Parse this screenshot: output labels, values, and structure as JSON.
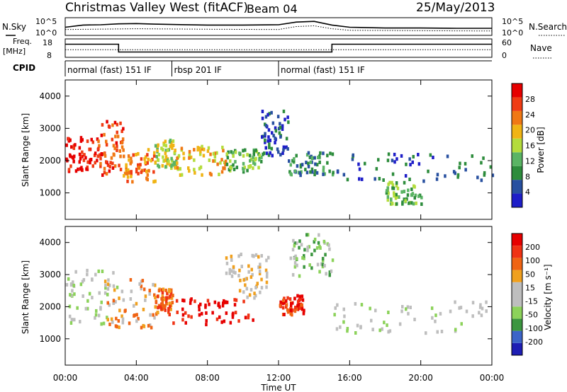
{
  "header": {
    "station": "Christmas Valley West (fitACF)",
    "beam": "Beam 04",
    "date": "25/May/2013"
  },
  "noise_panel": {
    "left_label": "N.Sky",
    "right_label": "N.Search",
    "left_ticks": [
      "10^5",
      "10^0"
    ],
    "right_ticks": [
      "10^5",
      "10^0"
    ]
  },
  "freq_panel": {
    "left_label_top": "Freq.",
    "left_label_bottom": "[MHz]",
    "right_label": "Nave",
    "left_ticks": [
      "18",
      "8"
    ],
    "right_ticks": [
      "60",
      "0"
    ]
  },
  "cpid": {
    "label": "CPID",
    "segments": [
      {
        "name": "normal (fast) 151 IF",
        "start_h": 0,
        "end_h": 6
      },
      {
        "name": "rbsp 201 IF",
        "start_h": 6,
        "end_h": 12
      },
      {
        "name": "normal (fast) 151 IF",
        "start_h": 12,
        "end_h": 24
      }
    ]
  },
  "x_axis": {
    "title": "Time UT",
    "ticks": [
      "00:00",
      "04:00",
      "08:00",
      "12:00",
      "16:00",
      "20:00",
      "00:00"
    ]
  },
  "colors": {
    "power_scale": [
      "#1e1ec8",
      "#2850a0",
      "#2d8c3c",
      "#5ab464",
      "#b4dc3c",
      "#f0b414",
      "#f07814",
      "#f03c14",
      "#e60000"
    ],
    "velocity_scale": [
      "#1e1eb4",
      "#3c64c8",
      "#3c9640",
      "#8cd25a",
      "#bebebe",
      "#bebebe",
      "#f0a01e",
      "#f06414",
      "#f03214",
      "#e60000"
    ]
  },
  "chart_data": [
    {
      "type": "line",
      "panel": "noise",
      "x_unit": "hours UT",
      "y_scale": "log",
      "y_range": [
        "10^0",
        "10^5"
      ],
      "series": [
        {
          "name": "N.Sky",
          "x": [
            0,
            1,
            2,
            3,
            4,
            5,
            6,
            8,
            10,
            12,
            13,
            14,
            15,
            16,
            18,
            20,
            22,
            24
          ],
          "y_frac": [
            0.45,
            0.6,
            0.62,
            0.68,
            0.7,
            0.66,
            0.64,
            0.6,
            0.6,
            0.62,
            0.8,
            0.85,
            0.6,
            0.45,
            0.4,
            0.4,
            0.38,
            0.38
          ]
        },
        {
          "name": "N.Search",
          "x": [
            0,
            4,
            8,
            12,
            13,
            14,
            15,
            16,
            20,
            24
          ],
          "y_frac": [
            0.3,
            0.35,
            0.32,
            0.3,
            0.5,
            0.55,
            0.35,
            0.25,
            0.22,
            0.2
          ]
        }
      ]
    },
    {
      "type": "line",
      "panel": "frequency",
      "x_unit": "hours UT",
      "y_range": [
        8,
        18
      ],
      "series": [
        {
          "name": "Freq.",
          "x": [
            0,
            3.0,
            3.0,
            15.0,
            15.0,
            24
          ],
          "y": [
            15.5,
            15.5,
            10.5,
            10.5,
            15.5,
            15.5
          ]
        },
        {
          "name": "Nave",
          "x": [
            0,
            24
          ],
          "y": [
            12,
            12
          ]
        }
      ]
    },
    {
      "type": "heatmap",
      "panel": "power",
      "y_label": "Slant Range [km]",
      "yticks": [
        1000,
        2000,
        3000,
        4000
      ],
      "ylim": [
        180,
        4500
      ],
      "xlim": [
        0,
        24
      ],
      "colorbar": {
        "label": "Power [dB]",
        "ticks": [
          4,
          8,
          12,
          16,
          20,
          24,
          28
        ]
      },
      "regions": [
        {
          "t0": 0.0,
          "t1": 1.8,
          "r0": 1700,
          "r1": 2800,
          "level": 8
        },
        {
          "t0": 1.8,
          "t1": 3.2,
          "r0": 1600,
          "r1": 3300,
          "level": 7
        },
        {
          "t0": 3.2,
          "t1": 5.0,
          "r0": 1400,
          "r1": 2400,
          "level": 6
        },
        {
          "t0": 5.0,
          "t1": 6.2,
          "r0": 1800,
          "r1": 2700,
          "level": 4
        },
        {
          "t0": 6.2,
          "t1": 9.0,
          "r0": 1600,
          "r1": 2500,
          "level": 5
        },
        {
          "t0": 9.0,
          "t1": 11.0,
          "r0": 1700,
          "r1": 2400,
          "level": 3
        },
        {
          "t0": 11.0,
          "t1": 12.5,
          "r0": 2200,
          "r1": 3600,
          "level": 1
        },
        {
          "t0": 12.5,
          "t1": 15.0,
          "r0": 1600,
          "r1": 2300,
          "level": 2
        },
        {
          "t0": 15.0,
          "t1": 24.0,
          "r0": 1400,
          "r1": 2300,
          "level": 1
        },
        {
          "t0": 18.0,
          "t1": 20.0,
          "r0": 700,
          "r1": 1400,
          "level": 3
        }
      ]
    },
    {
      "type": "heatmap",
      "panel": "velocity",
      "y_label": "Slant Range [km]",
      "yticks": [
        1000,
        2000,
        3000,
        4000
      ],
      "ylim": [
        180,
        4500
      ],
      "xlim": [
        0,
        24
      ],
      "colorbar": {
        "label": "Velocity [m s⁻¹]",
        "ticks": [
          200,
          100,
          50,
          15,
          -15,
          -50,
          -100,
          -200
        ]
      },
      "regions": [
        {
          "t0": 0.0,
          "t1": 3.0,
          "r0": 1500,
          "r1": 3200,
          "level": 4
        },
        {
          "t0": 2.0,
          "t1": 5.0,
          "r0": 1400,
          "r1": 2900,
          "level": 6
        },
        {
          "t0": 5.0,
          "t1": 6.0,
          "r0": 1800,
          "r1": 2600,
          "level": 7
        },
        {
          "t0": 6.0,
          "t1": 10.5,
          "r0": 1500,
          "r1": 2300,
          "level": 9
        },
        {
          "t0": 9.0,
          "t1": 11.5,
          "r0": 2300,
          "r1": 3800,
          "level": 5
        },
        {
          "t0": 12.0,
          "t1": 13.5,
          "r0": 1800,
          "r1": 2400,
          "level": 8
        },
        {
          "t0": 15.0,
          "t1": 24.0,
          "r0": 1200,
          "r1": 2200,
          "level": 4
        },
        {
          "t0": 12.5,
          "t1": 15.0,
          "r0": 3000,
          "r1": 4300,
          "level": 3
        }
      ]
    }
  ]
}
